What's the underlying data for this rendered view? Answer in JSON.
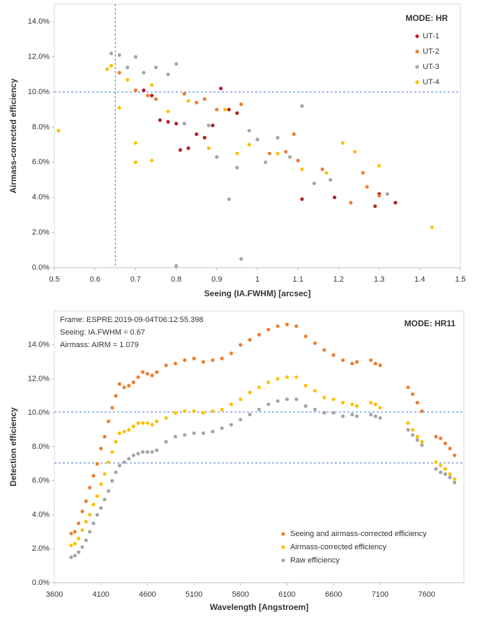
{
  "chart_data": [
    {
      "type": "scatter",
      "legend_title": "MODE: HR",
      "x_label": "Seeing (IA.FWHM) [arcsec]",
      "y_label": "Airmass-corrected efficiency",
      "xlim": [
        0.5,
        1.5
      ],
      "xticks": [
        0.5,
        0.6,
        0.7,
        0.8,
        0.9,
        1,
        1.1,
        1.2,
        1.3,
        1.4,
        1.5
      ],
      "ylim": [
        0,
        15
      ],
      "yticks": [
        {
          "value": 0,
          "label": "0.0%"
        },
        {
          "value": 2,
          "label": "2.0%"
        },
        {
          "value": 4,
          "label": "4.0%"
        },
        {
          "value": 6,
          "label": "6.0%"
        },
        {
          "value": 8,
          "label": "8.0%"
        },
        {
          "value": 10,
          "label": "10.0%"
        },
        {
          "value": 12,
          "label": "12.0%"
        },
        {
          "value": 14,
          "label": "14.0%"
        }
      ],
      "reference_lines": {
        "x": [
          0.65
        ],
        "y": [
          10
        ]
      },
      "legend": "top-right",
      "series": [
        {
          "name": "UT-1",
          "color": "#b0202a",
          "x": [
            0.72,
            0.74,
            0.76,
            0.78,
            0.8,
            0.81,
            0.83,
            0.85,
            0.87,
            0.89,
            0.91,
            0.93,
            0.95,
            1.11,
            1.19,
            1.29,
            1.3,
            1.34
          ],
          "values": [
            10.1,
            9.8,
            8.4,
            8.3,
            8.2,
            6.7,
            6.8,
            7.6,
            7.4,
            8.1,
            10.2,
            9.0,
            8.8,
            3.9,
            4.0,
            3.5,
            4.2,
            3.7
          ]
        },
        {
          "name": "UT-2",
          "color": "#ed7d31",
          "x": [
            0.66,
            0.7,
            0.73,
            0.75,
            0.82,
            0.85,
            0.87,
            0.9,
            0.96,
            1.0,
            1.03,
            1.07,
            1.09,
            1.1,
            1.16,
            1.23,
            1.26,
            1.27,
            1.3
          ],
          "values": [
            11.1,
            10.1,
            9.8,
            9.6,
            9.9,
            9.4,
            9.6,
            9.0,
            9.3,
            7.3,
            6.5,
            6.6,
            7.6,
            6.1,
            5.6,
            3.7,
            5.4,
            4.6,
            4.1
          ]
        },
        {
          "name": "UT-3",
          "color": "#a5a5a5",
          "x": [
            0.64,
            0.66,
            0.68,
            0.7,
            0.72,
            0.75,
            0.78,
            0.8,
            0.8,
            0.82,
            0.88,
            0.9,
            0.93,
            0.95,
            0.96,
            0.98,
            1.0,
            1.02,
            1.05,
            1.08,
            1.11,
            1.14,
            1.18,
            1.32
          ],
          "values": [
            12.2,
            12.1,
            11.4,
            12.0,
            11.1,
            11.4,
            11.0,
            11.6,
            0.1,
            8.2,
            8.1,
            6.3,
            3.9,
            5.7,
            0.5,
            7.8,
            7.3,
            6.0,
            7.4,
            6.3,
            9.2,
            4.8,
            5.0,
            4.2
          ]
        },
        {
          "name": "UT-4",
          "color": "#ffc000",
          "x": [
            0.51,
            0.63,
            0.64,
            0.66,
            0.68,
            0.7,
            0.7,
            0.74,
            0.74,
            0.78,
            0.83,
            0.88,
            0.92,
            0.95,
            0.98,
            1.05,
            1.11,
            1.17,
            1.21,
            1.24,
            1.3,
            1.43
          ],
          "values": [
            7.8,
            11.3,
            11.5,
            9.1,
            10.7,
            7.1,
            6.0,
            6.1,
            10.4,
            8.9,
            9.5,
            6.8,
            9.0,
            6.5,
            7.0,
            6.5,
            5.6,
            5.4,
            7.1,
            6.6,
            5.8,
            2.3
          ]
        }
      ]
    },
    {
      "type": "scatter",
      "legend_title": "MODE: HR11",
      "x_label": "Wavelength [Angstroem]",
      "y_label": "Detection efficiency",
      "annotations": [
        "Frame: ESPRE.2019-09-04T06:12:55.398",
        "Seeing: IA.FWHM = 0.67",
        "Airmass: AIRM = 1.079"
      ],
      "xlim": [
        3600,
        8000
      ],
      "xticks": [
        3600,
        4100,
        4600,
        5100,
        5600,
        6100,
        6600,
        7100,
        7600
      ],
      "ylim": [
        0,
        16
      ],
      "yticks": [
        {
          "value": 0,
          "label": "0.0%"
        },
        {
          "value": 2,
          "label": "2.0%"
        },
        {
          "value": 4,
          "label": "4.0%"
        },
        {
          "value": 6,
          "label": "6.0%"
        },
        {
          "value": 8,
          "label": "8.0%"
        },
        {
          "value": 10,
          "label": "10.0%"
        },
        {
          "value": 12,
          "label": "12.0%"
        },
        {
          "value": 14,
          "label": "14.0%"
        }
      ],
      "reference_lines": {
        "y": [
          10.05,
          7.05
        ]
      },
      "legend": "bottom",
      "x": [
        3780,
        3820,
        3860,
        3900,
        3940,
        3980,
        4020,
        4060,
        4100,
        4140,
        4180,
        4220,
        4260,
        4300,
        4350,
        4400,
        4450,
        4500,
        4550,
        4600,
        4650,
        4700,
        4800,
        4900,
        5000,
        5100,
        5200,
        5300,
        5400,
        5500,
        5600,
        5700,
        5800,
        5900,
        6000,
        6100,
        6200,
        6300,
        6400,
        6500,
        6600,
        6700,
        6800,
        6850,
        7000,
        7050,
        7100,
        7400,
        7450,
        7500,
        7550,
        7700,
        7750,
        7800,
        7850,
        7900
      ],
      "series": [
        {
          "name": "Seeing and airmass-corrected efficiency",
          "color": "#ed7d31",
          "values": [
            2.9,
            3.0,
            3.5,
            4.2,
            4.8,
            5.6,
            6.3,
            7.0,
            7.9,
            8.6,
            9.5,
            10.3,
            11.0,
            11.7,
            11.5,
            11.6,
            11.8,
            12.1,
            12.4,
            12.3,
            12.2,
            12.4,
            12.8,
            12.9,
            13.1,
            13.2,
            13.0,
            13.1,
            13.2,
            13.5,
            14.0,
            14.3,
            14.6,
            14.9,
            15.1,
            15.2,
            15.1,
            14.5,
            14.1,
            13.7,
            13.4,
            13.1,
            12.9,
            13.0,
            13.1,
            12.9,
            12.8,
            11.5,
            11.1,
            10.6,
            10.1,
            8.6,
            8.5,
            8.2,
            7.9,
            7.5
          ]
        },
        {
          "name": "Airmass-corrected efficiency",
          "color": "#ffc000",
          "values": [
            2.2,
            2.3,
            2.6,
            3.1,
            3.6,
            4.0,
            4.6,
            5.1,
            5.8,
            6.4,
            7.1,
            7.7,
            8.3,
            8.8,
            8.9,
            9.0,
            9.2,
            9.4,
            9.4,
            9.4,
            9.3,
            9.5,
            9.7,
            10.0,
            10.1,
            10.1,
            10.0,
            10.1,
            10.2,
            10.5,
            10.8,
            11.2,
            11.5,
            11.8,
            12.0,
            12.1,
            12.1,
            11.6,
            11.3,
            10.9,
            10.8,
            10.6,
            10.5,
            10.4,
            10.6,
            10.5,
            10.3,
            9.4,
            9.0,
            8.6,
            8.3,
            7.1,
            6.9,
            6.7,
            6.4,
            6.1
          ]
        },
        {
          "name": "Raw efficiency",
          "color": "#a5a5a5",
          "values": [
            1.5,
            1.6,
            1.8,
            2.1,
            2.5,
            3.0,
            3.5,
            4.0,
            4.4,
            4.9,
            5.4,
            6.0,
            6.5,
            6.9,
            7.1,
            7.3,
            7.5,
            7.6,
            7.7,
            7.7,
            7.7,
            7.8,
            8.3,
            8.6,
            8.7,
            8.8,
            8.8,
            8.9,
            9.1,
            9.3,
            9.6,
            9.9,
            10.2,
            10.5,
            10.7,
            10.8,
            10.8,
            10.4,
            10.2,
            10.0,
            10.0,
            9.8,
            9.9,
            9.8,
            9.9,
            9.8,
            9.7,
            9.0,
            8.7,
            8.4,
            8.1,
            6.7,
            6.5,
            6.4,
            6.2,
            5.9
          ]
        }
      ]
    }
  ]
}
